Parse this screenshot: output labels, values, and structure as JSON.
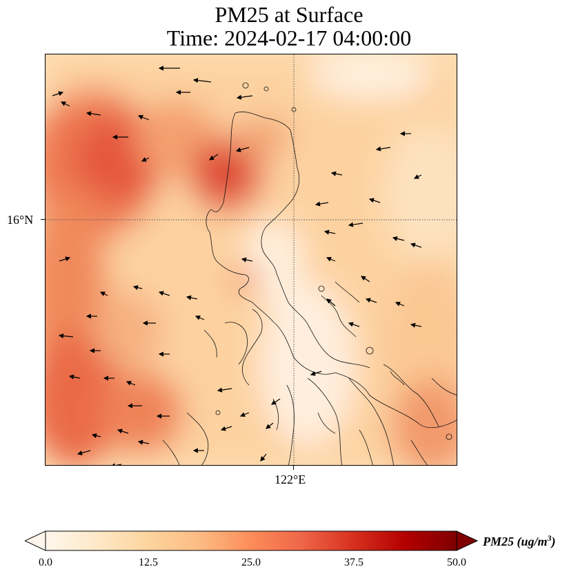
{
  "title": {
    "line1": "PM25 at Surface",
    "line2": "Time: 2024-02-17 04:00:00"
  },
  "map": {
    "lat_label": "16°N",
    "lon_label": "122°E",
    "gridlines": "dotted",
    "extent": {
      "lon_min": 119.0,
      "lon_max": 124.0,
      "lat_min": 13.0,
      "lat_max": 18.0
    },
    "overlay": "wind vectors (arrows) over PM25 shading with coastlines"
  },
  "colorbar": {
    "min": 0.0,
    "max": 50.0,
    "ticks": [
      "0.0",
      "12.5",
      "25.0",
      "37.5",
      "50.0"
    ],
    "label_main": "PM25 (ug/m",
    "label_sup": "3",
    "label_end": ")",
    "colormap": "OrRd",
    "colors": [
      "#fff7ec",
      "#fee8c8",
      "#fdd49e",
      "#fdbb84",
      "#fc8d59",
      "#ef6548",
      "#d7301f",
      "#b30000",
      "#7f0000"
    ],
    "extend": "both"
  }
}
